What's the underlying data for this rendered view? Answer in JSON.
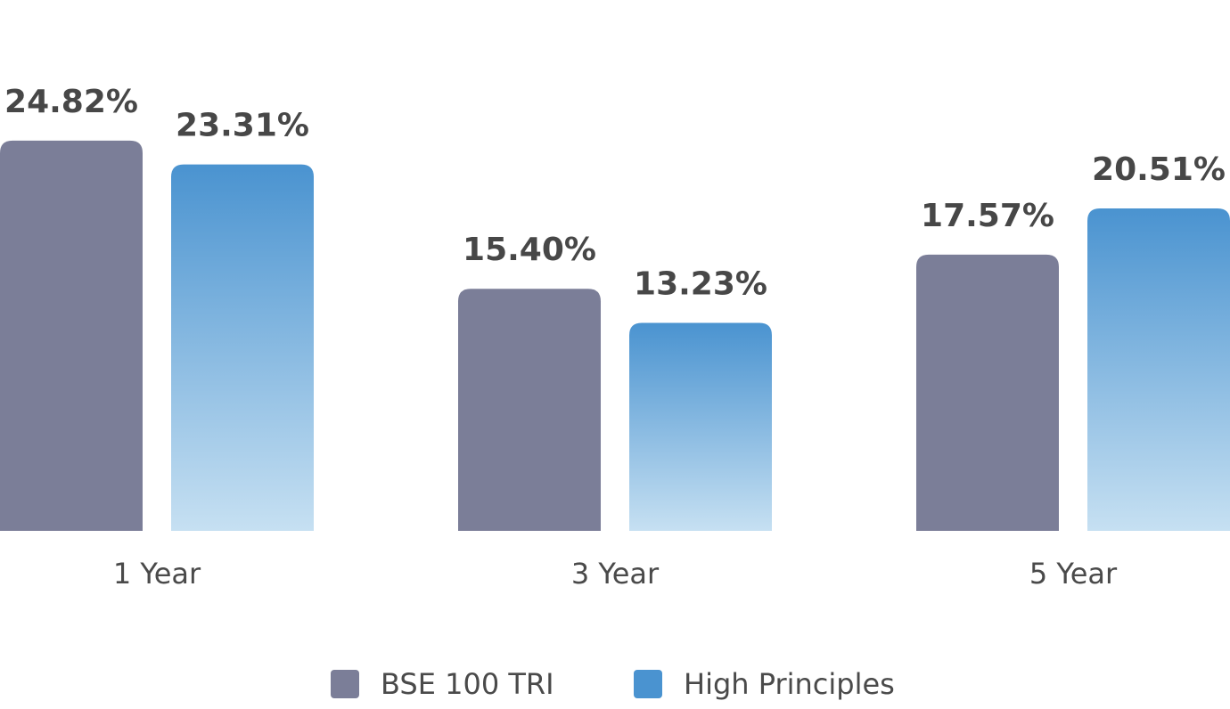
{
  "chart_data": {
    "type": "bar",
    "categories": [
      "1 Year",
      "3 Year",
      "5 Year"
    ],
    "series": [
      {
        "name": "BSE 100 TRI",
        "values": [
          24.82,
          15.4,
          17.57
        ],
        "labels": [
          "24.82%",
          "15.40%",
          "17.57%"
        ],
        "color": "#7b7e98"
      },
      {
        "name": "High Principles",
        "values": [
          23.31,
          13.23,
          20.51
        ],
        "labels": [
          "23.31%",
          "13.23%",
          "20.51%"
        ],
        "color": "#4a93d0",
        "color_light": "#c6e0f2"
      }
    ],
    "ylim": [
      0,
      25
    ],
    "grid": false,
    "legend_position": "bottom-center"
  }
}
